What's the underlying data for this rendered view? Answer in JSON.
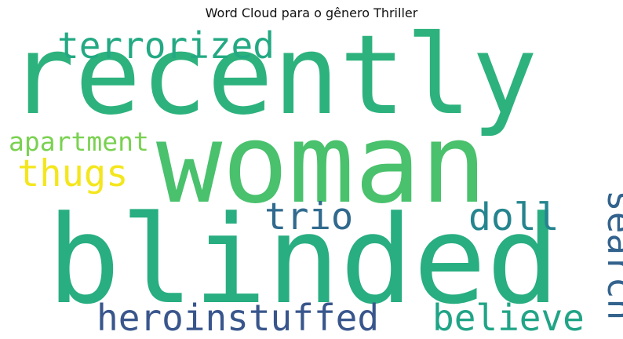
{
  "title": "Word Cloud para o gênero Thriller",
  "words": [
    {
      "text": "recently",
      "color": "#2db27d"
    },
    {
      "text": "woman",
      "color": "#4ac16d"
    },
    {
      "text": "blinded",
      "color": "#28ae80"
    },
    {
      "text": "terrorized",
      "color": "#23a983"
    },
    {
      "text": "apartment",
      "color": "#7ad151"
    },
    {
      "text": "thugs",
      "color": "#f4e61e"
    },
    {
      "text": "trio",
      "color": "#306a8e"
    },
    {
      "text": "doll",
      "color": "#25858e"
    },
    {
      "text": "search",
      "color": "#33638d"
    },
    {
      "text": "heroinstuffed",
      "color": "#39568c"
    },
    {
      "text": "believe",
      "color": "#20a486"
    }
  ]
}
